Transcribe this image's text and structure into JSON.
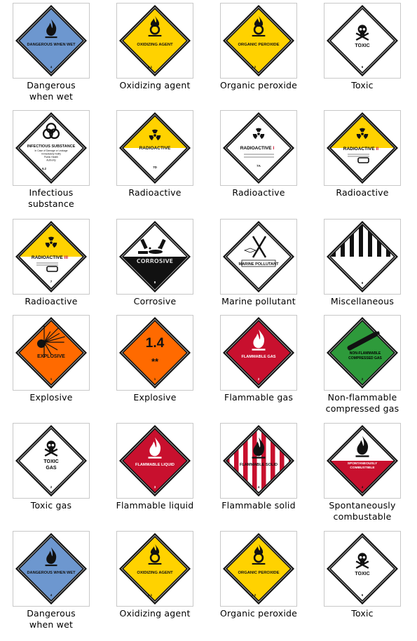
{
  "signs": [
    {
      "caption": "Dangerous when wet",
      "caption_lines": [
        "Dangerous",
        "when wet"
      ],
      "type": "wet",
      "label": "DANGEROUS WHEN WET",
      "class_no": "4"
    },
    {
      "caption": "Oxidizing agent",
      "caption_lines": [
        "Oxidizing agent"
      ],
      "type": "oxidizer",
      "label": "OXIDIZING AGENT",
      "class_no": "5.1"
    },
    {
      "caption": "Organic peroxide",
      "caption_lines": [
        "Organic peroxide"
      ],
      "type": "peroxide",
      "label": "ORGANIC PEROXIDE",
      "class_no": "5.2"
    },
    {
      "caption": "Toxic",
      "caption_lines": [
        "Toxic"
      ],
      "type": "toxic",
      "label": "TOXIC",
      "class_no": "6"
    },
    {
      "caption": "Infectious substance",
      "caption_lines": [
        "Infectious",
        "substance"
      ],
      "type": "infectious",
      "label": "INFECTIOUS SUBSTANCE",
      "sub_lines": [
        "In Case of Damage or Leakage",
        "Immediately Notify",
        "Public Health",
        "Authority"
      ],
      "class_no": "6.2"
    },
    {
      "caption": "Radioactive",
      "caption_lines": [
        "Radioactive"
      ],
      "type": "radioactive-yellow",
      "label": "RADIOACTIVE",
      "class_no": "7D"
    },
    {
      "caption": "Radioactive",
      "caption_lines": [
        "Radioactive"
      ],
      "type": "radioactive-white",
      "label": "RADIOACTIVE",
      "roman": "I",
      "class_no": "7A"
    },
    {
      "caption": "Radioactive",
      "caption_lines": [
        "Radioactive"
      ],
      "type": "radioactive-ii",
      "label": "RADIOACTIVE",
      "roman": "II",
      "class_no": ""
    },
    {
      "caption": "Radioactive",
      "caption_lines": [
        "Radioactive"
      ],
      "type": "radioactive-iii",
      "label": "RADIOACTIVE",
      "roman": "III",
      "class_no": "7"
    },
    {
      "caption": "Corrosive",
      "caption_lines": [
        "Corrosive"
      ],
      "type": "corrosive",
      "label": "CORROSIVE",
      "class_no": "8"
    },
    {
      "caption": "Marine pollutant",
      "caption_lines": [
        "Marine pollutant"
      ],
      "type": "marine",
      "label": "MARINE POLLUTANT",
      "class_no": ""
    },
    {
      "caption": "Miscellaneous",
      "caption_lines": [
        "Miscellaneous"
      ],
      "type": "misc",
      "label": "",
      "class_no": "9"
    },
    {
      "caption": "Explosive",
      "caption_lines": [
        "Explosive"
      ],
      "type": "explosive",
      "label": "EXPLOSIVE",
      "class_no": "1"
    },
    {
      "caption": "Explosive",
      "caption_lines": [
        "Explosive"
      ],
      "type": "explosive-14",
      "label": "1.4",
      "stars": "**",
      "class_no": "1"
    },
    {
      "caption": "Flammable gas",
      "caption_lines": [
        "Flammable gas"
      ],
      "type": "flammable-gas",
      "label": "FLAMMABLE GAS",
      "class_no": "2"
    },
    {
      "caption": "Non-flammable compressed gas",
      "caption_lines": [
        "Non-flammable",
        "compressed gas"
      ],
      "type": "nonflam-gas",
      "label_lines": [
        "NON-FLAMMABLE",
        "COMPRESSED GAS"
      ],
      "class_no": "2"
    },
    {
      "caption": "Toxic gas",
      "caption_lines": [
        "Toxic gas"
      ],
      "type": "toxic-gas",
      "label_lines": [
        "TOXIC",
        "GAS"
      ],
      "class_no": "2"
    },
    {
      "caption": "Flammable liquid",
      "caption_lines": [
        "Flammable liquid"
      ],
      "type": "flammable-liquid",
      "label": "FLAMMABLE LIQUID",
      "class_no": "3"
    },
    {
      "caption": "Flammable solid",
      "caption_lines": [
        "Flammable solid"
      ],
      "type": "flammable-solid",
      "label": "FLAMMABLE SOLID",
      "class_no": "4"
    },
    {
      "caption": "Spontaneously combustable",
      "caption_lines": [
        "Spontaneously",
        "combustable"
      ],
      "spellcheck_line": 1,
      "type": "spontaneous",
      "label_lines": [
        "SPONTANEOUSLY",
        "COMBUSTIBLE"
      ],
      "class_no": "4"
    },
    {
      "caption": "Dangerous when wet",
      "caption_lines": [
        "Dangerous",
        "when wet"
      ],
      "type": "wet",
      "label": "DANGEROUS WHEN WET",
      "class_no": "4"
    },
    {
      "caption": "Oxidizing agent",
      "caption_lines": [
        "Oxidizing agent"
      ],
      "type": "oxidizer",
      "label": "OXIDIZING AGENT",
      "class_no": "5.1"
    },
    {
      "caption": "Organic peroxide",
      "caption_lines": [
        "Organic peroxide"
      ],
      "type": "peroxide",
      "label": "ORGANIC PEROXIDE",
      "class_no": "5.2"
    },
    {
      "caption": "Toxic",
      "caption_lines": [
        "Toxic"
      ],
      "type": "toxic",
      "label": "TOXIC",
      "class_no": "6"
    }
  ],
  "colors": {
    "blue": "#6d97cf",
    "yellow": "#ffd200",
    "red": "#c8102e",
    "green": "#2e9a3b",
    "orange": "#ff6a00",
    "black": "#111111",
    "white": "#ffffff"
  }
}
